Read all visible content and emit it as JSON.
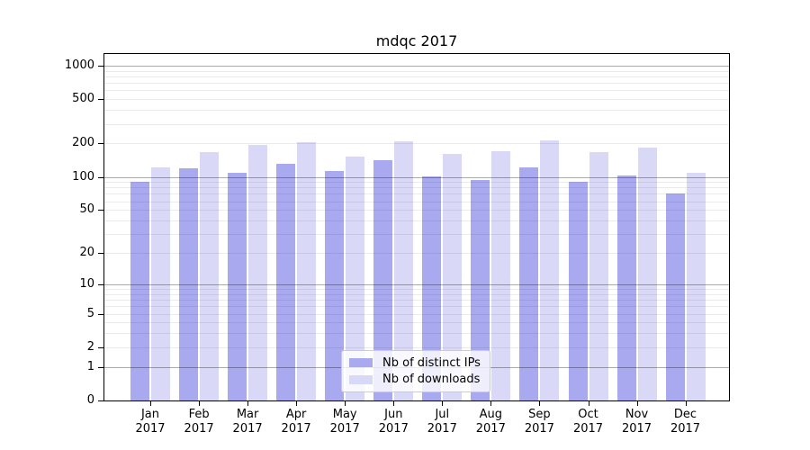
{
  "title": "mdqc 2017",
  "legend": {
    "entries": [
      {
        "label": "Nb of distinct IPs",
        "key": "ips"
      },
      {
        "label": "Nb of downloads",
        "key": "downloads"
      }
    ]
  },
  "colors": {
    "ips_bar": "#a9a9f0",
    "downloads_bar": "#d9d9f7",
    "major_gridline": "rgba(0,0,0,0.33)",
    "minor_gridline": "rgba(0,0,0,0.08)",
    "axis": "#000000",
    "background": "#ffffff",
    "legend_border": "#cccccc"
  },
  "chart_data": {
    "type": "bar",
    "title": "mdqc 2017",
    "categories": [
      "Jan 2017",
      "Feb 2017",
      "Mar 2017",
      "Apr 2017",
      "May 2017",
      "Jun 2017",
      "Jul 2017",
      "Aug 2017",
      "Sep 2017",
      "Oct 2017",
      "Nov 2017",
      "Dec 2017"
    ],
    "series": [
      {
        "name": "Nb of distinct IPs",
        "key": "ips",
        "values": [
          91,
          120,
          108,
          132,
          112,
          141,
          101,
          94,
          121,
          91,
          102,
          71
        ]
      },
      {
        "name": "Nb of downloads",
        "key": "downloads",
        "values": [
          122,
          168,
          195,
          205,
          152,
          211,
          160,
          172,
          215,
          167,
          183,
          109
        ]
      }
    ],
    "y_axis": {
      "scale": "log1p",
      "tick_values": [
        0,
        1,
        2,
        5,
        10,
        20,
        50,
        100,
        200,
        500,
        1000
      ],
      "major_gridline_values": [
        1,
        10,
        100,
        1000
      ],
      "minor_gridline_multipliers": [
        2,
        3,
        4,
        5,
        6,
        7,
        8,
        9
      ],
      "minor_gridline_decades": [
        1,
        10,
        100
      ],
      "top_value": 1290
    },
    "x_axis": {
      "label_lines_per_category": 2
    },
    "legend_position": "lower center",
    "grid": true
  }
}
